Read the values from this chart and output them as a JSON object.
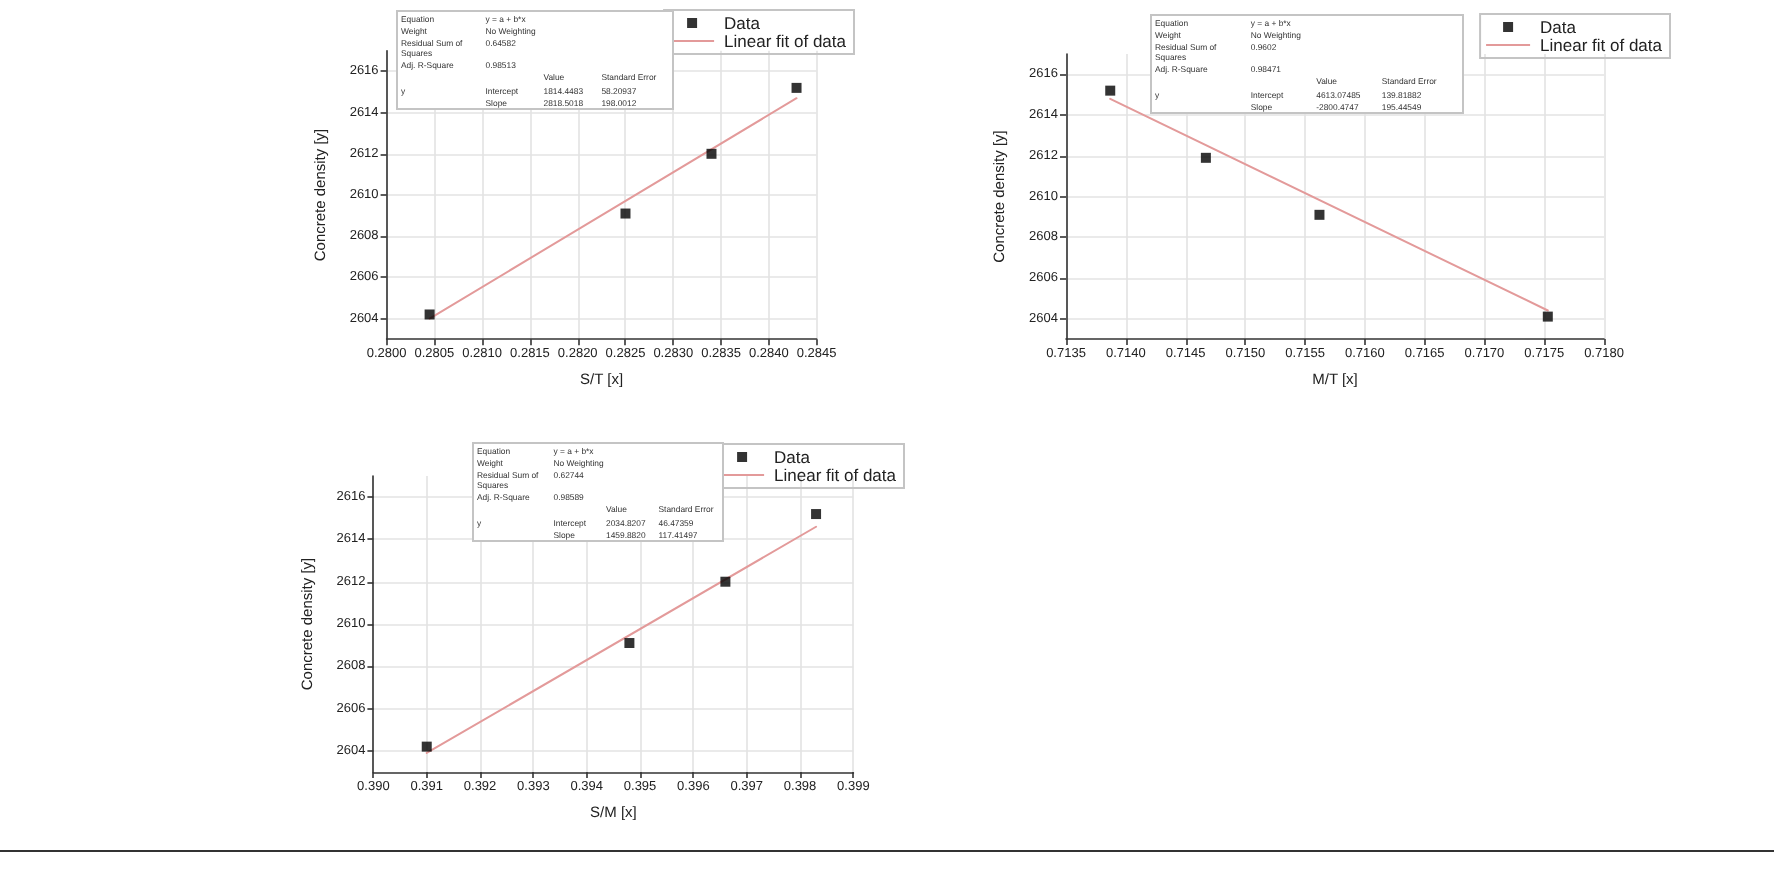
{
  "chart_data": [
    {
      "type": "scatter",
      "xlabel": "S/T [x]",
      "ylabel": "Concrete density [y]",
      "marker": "square",
      "grid": true,
      "legend": "top right",
      "series": [
        {
          "name": "Data",
          "color": "#000000",
          "x": [
            0.28045,
            0.2825,
            0.2834,
            0.28429
          ],
          "values": [
            2604.2,
            2609.1,
            2612.0,
            2615.2
          ]
        },
        {
          "name": "Linear fit of data",
          "type": "line",
          "marker": "none",
          "color": "#e39a9a",
          "x": [
            0.28045,
            0.28429
          ],
          "values": [
            2604.0,
            2614.7
          ]
        }
      ],
      "xlim": [
        0.28,
        0.2845
      ],
      "xticks": [
        {
          "value": 0.28,
          "label": "0.2800"
        },
        0.2805,
        {
          "value": 0.281,
          "label": "0.2810"
        },
        0.2815,
        {
          "value": 0.282,
          "label": "0.2820"
        },
        0.2825,
        {
          "value": 0.283,
          "label": "0.2830"
        },
        0.2835,
        {
          "value": 0.284,
          "label": "0.2840"
        },
        0.2845
      ],
      "ylim": [
        2603,
        2617
      ],
      "yticks": [
        2604,
        2606,
        2608,
        2610,
        2612,
        2614,
        2616
      ],
      "annotations": [
        "Equation",
        "y = a + b*x",
        "Weight",
        "No Weighting",
        "Residual Sum of Squares",
        "0.64582",
        "Adj. R-Square",
        "0.98513",
        "Value",
        "Standard Error",
        "y",
        "Intercept",
        "1814.4483",
        "58.20937",
        "Slope",
        "2818.5018",
        "198.0012"
      ]
    },
    {
      "type": "scatter",
      "xlabel": "M/T [x]",
      "ylabel": "Concrete density [y]",
      "marker": "square",
      "grid": true,
      "legend": "top right",
      "series": [
        {
          "name": "Data",
          "color": "#000000",
          "x": [
            0.71387,
            0.71467,
            0.71562,
            0.71753
          ],
          "values": [
            2615.2,
            2611.9,
            2609.1,
            2604.1
          ]
        },
        {
          "name": "Linear fit of data",
          "type": "line",
          "marker": "none",
          "color": "#e39a9a",
          "x": [
            0.71387,
            0.71753
          ],
          "values": [
            2614.8,
            2604.4
          ]
        }
      ],
      "xlim": [
        0.7135,
        0.718
      ],
      "xticks": [
        0.7135,
        {
          "value": 0.714,
          "label": "0.7140"
        },
        0.7145,
        {
          "value": 0.715,
          "label": "0.7150"
        },
        0.7155,
        {
          "value": 0.716,
          "label": "0.7160"
        },
        0.7165,
        {
          "value": 0.717,
          "label": "0.7170"
        },
        0.7175,
        {
          "value": 0.718,
          "label": "0.7180"
        }
      ],
      "ylim": [
        2603,
        2617
      ],
      "yticks": [
        2604,
        2606,
        2608,
        2610,
        2612,
        2614,
        2616
      ],
      "annotations": [
        "Equation",
        "y = a + b*x",
        "Weight",
        "No Weighting",
        "Residual Sum of Squares",
        "0.9602",
        "Adj. R-Square",
        "0.98471",
        "Value",
        "Standard Error",
        "y",
        "Intercept",
        "4613.07485",
        "139.81882",
        "Slope",
        "-2800.4747",
        "195.44549"
      ]
    },
    {
      "type": "scatter",
      "xlabel": "S/M [x]",
      "ylabel": "Concrete density [y]",
      "marker": "square",
      "grid": true,
      "legend": "top right",
      "series": [
        {
          "name": "Data",
          "color": "#000000",
          "x": [
            0.391,
            0.3948,
            0.3966,
            0.3983
          ],
          "values": [
            2604.2,
            2609.1,
            2612.0,
            2615.2
          ]
        },
        {
          "name": "Linear fit of data",
          "type": "line",
          "marker": "none",
          "color": "#e39a9a",
          "x": [
            0.391,
            0.3983
          ],
          "values": [
            2603.9,
            2614.6
          ]
        }
      ],
      "xlim": [
        0.39,
        0.399
      ],
      "xticks": [
        {
          "value": 0.39,
          "label": "0.390"
        },
        0.391,
        0.392,
        0.393,
        0.394,
        0.395,
        0.396,
        0.397,
        0.398,
        0.399
      ],
      "ylim": [
        2603,
        2617
      ],
      "yticks": [
        2604,
        2606,
        2608,
        2610,
        2612,
        2614,
        2616
      ],
      "annotations": [
        "Equation",
        "y = a + b*x",
        "Weight",
        "No Weighting",
        "Residual Sum of Squares",
        "0.62744",
        "Adj. R-Square",
        "0.98589",
        "Value",
        "Standard Error",
        "y",
        "Intercept",
        "2034.8207",
        "46.47359",
        "Slope",
        "1459.8820",
        "117.41497"
      ]
    }
  ]
}
